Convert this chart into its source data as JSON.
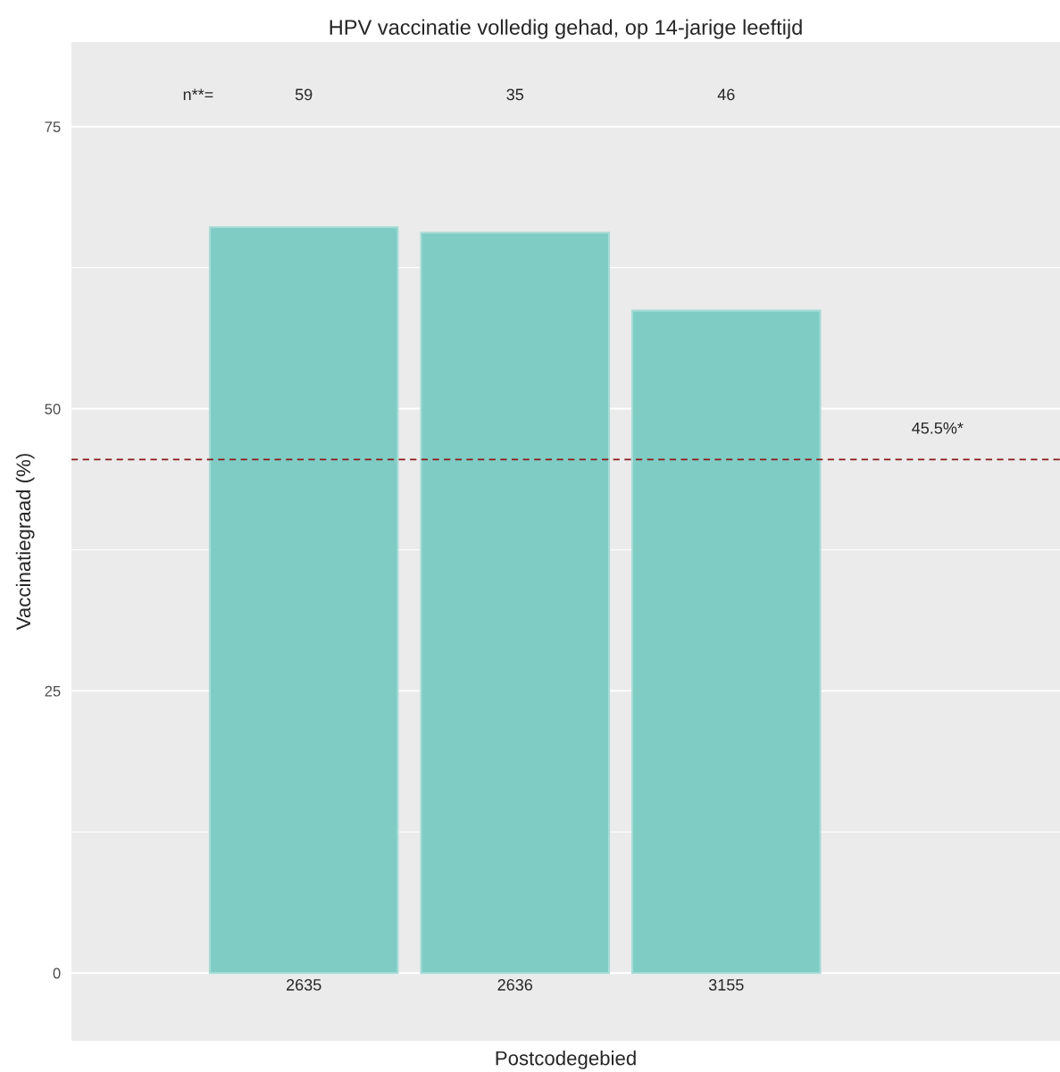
{
  "chart_data": {
    "type": "bar",
    "title": "HPV vaccinatie volledig gehad, op 14-jarige leeftijd",
    "xlabel": "Postcodegebied",
    "ylabel": "Vaccinatiegraad (%)",
    "categories": [
      "2635",
      "2636",
      "3155"
    ],
    "values": [
      66.1,
      65.6,
      58.7
    ],
    "color": "#7fccc5",
    "ylim": [
      -6,
      82.5
    ],
    "yticks": [
      0,
      25,
      50,
      75
    ],
    "grid": "y",
    "ref_lines": [
      {
        "axis": "y",
        "value": 45.5,
        "label": "45.5%*",
        "color": "#8b1a1a",
        "line_style": "dashed"
      }
    ],
    "annotations": [
      "n**=",
      "59",
      "35",
      "46"
    ]
  }
}
